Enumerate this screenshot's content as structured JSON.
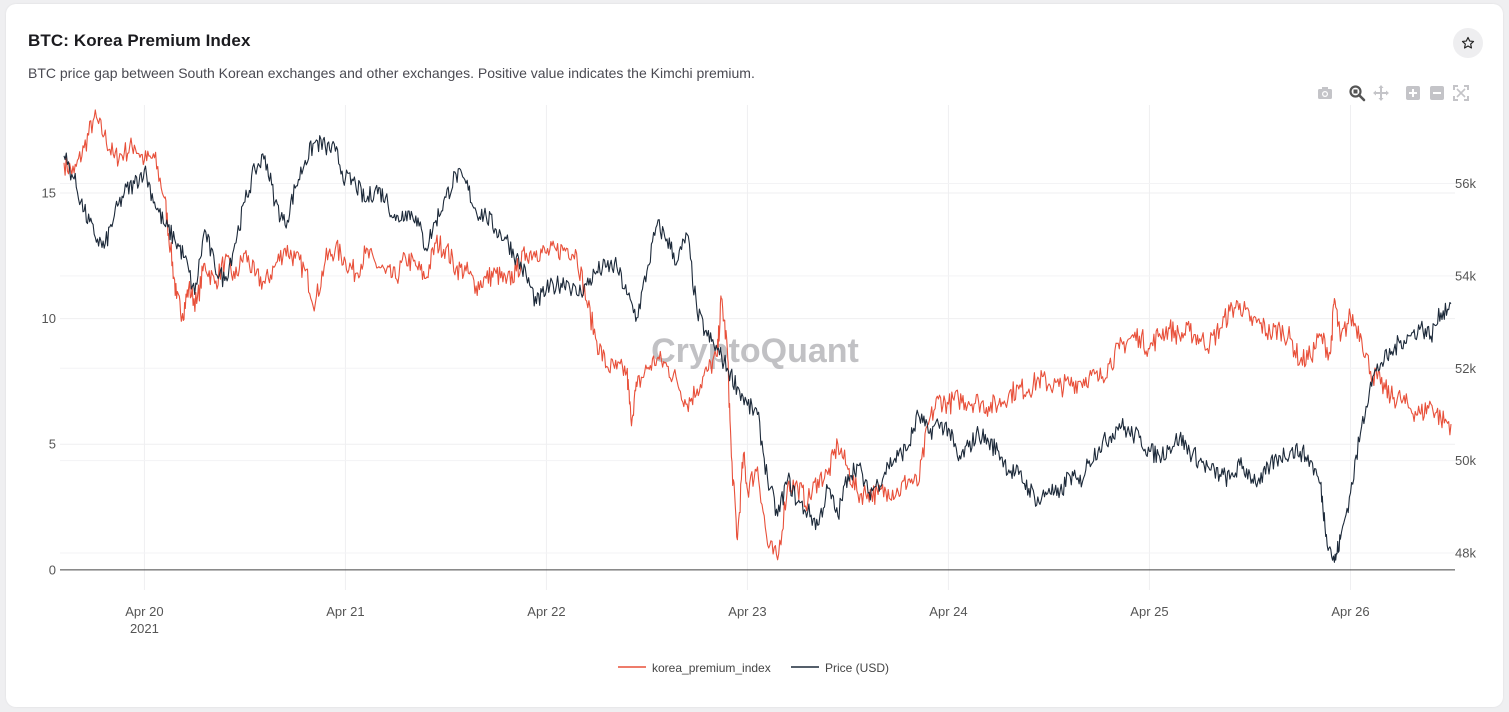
{
  "header": {
    "title": "BTC: Korea Premium Index",
    "subtitle": "BTC price gap between South Korean exchanges and other exchanges. Positive value indicates the Kimchi premium."
  },
  "icons": {
    "favorite": "star-icon",
    "modebar": [
      "camera-icon",
      "zoom-icon",
      "pan-icon",
      "zoom-in-icon",
      "zoom-out-icon",
      "autoscale-icon"
    ]
  },
  "watermark": "CryptoQuant",
  "chart_data": {
    "type": "line",
    "title": "BTC: Korea Premium Index",
    "x_tick_labels": [
      "Apr 20",
      "Apr 21",
      "Apr 22",
      "Apr 23",
      "Apr 24",
      "Apr 25",
      "Apr 26"
    ],
    "x_year_label": "2021",
    "x_range_days": [
      19.58,
      26.52
    ],
    "y_left": {
      "label": "",
      "ticks": [
        0,
        5,
        10,
        15
      ],
      "range": [
        -0.8,
        18.5
      ]
    },
    "y_right": {
      "label": "",
      "ticks": [
        48000,
        50000,
        52000,
        54000,
        56000
      ],
      "tick_labels": [
        "48k",
        "50k",
        "52k",
        "54k",
        "56k"
      ],
      "range": [
        47200,
        57700
      ]
    },
    "grid": true,
    "legend_position": "bottom-center",
    "series": [
      {
        "name": "korea_premium_index",
        "axis": "left",
        "color": "#e8503a",
        "points": [
          [
            19.6,
            16.2
          ],
          [
            19.65,
            15.8
          ],
          [
            19.7,
            16.8
          ],
          [
            19.75,
            18.0
          ],
          [
            19.8,
            17.3
          ],
          [
            19.85,
            16.4
          ],
          [
            19.9,
            16.6
          ],
          [
            19.95,
            16.9
          ],
          [
            20.0,
            16.3
          ],
          [
            20.05,
            16.4
          ],
          [
            20.1,
            14.8
          ],
          [
            20.13,
            12.8
          ],
          [
            20.16,
            10.8
          ],
          [
            20.19,
            10.2
          ],
          [
            20.22,
            11.2
          ],
          [
            20.26,
            10.6
          ],
          [
            20.3,
            12.2
          ],
          [
            20.35,
            11.4
          ],
          [
            20.4,
            12.3
          ],
          [
            20.45,
            11.6
          ],
          [
            20.5,
            12.6
          ],
          [
            20.55,
            11.7
          ],
          [
            20.6,
            11.4
          ],
          [
            20.65,
            12.1
          ],
          [
            20.7,
            12.8
          ],
          [
            20.75,
            12.4
          ],
          [
            20.8,
            11.9
          ],
          [
            20.85,
            10.6
          ],
          [
            20.9,
            12.3
          ],
          [
            20.95,
            12.8
          ],
          [
            21.0,
            12.3
          ],
          [
            21.05,
            11.8
          ],
          [
            21.1,
            12.6
          ],
          [
            21.15,
            12.2
          ],
          [
            21.2,
            11.8
          ],
          [
            21.25,
            11.6
          ],
          [
            21.3,
            12.4
          ],
          [
            21.35,
            12.1
          ],
          [
            21.4,
            11.6
          ],
          [
            21.45,
            13.0
          ],
          [
            21.5,
            12.8
          ],
          [
            21.55,
            12.0
          ],
          [
            21.6,
            11.9
          ],
          [
            21.65,
            11.3
          ],
          [
            21.7,
            11.6
          ],
          [
            21.75,
            11.8
          ],
          [
            21.8,
            11.4
          ],
          [
            21.85,
            11.9
          ],
          [
            21.9,
            12.6
          ],
          [
            21.95,
            12.7
          ],
          [
            22.0,
            12.6
          ],
          [
            22.05,
            12.7
          ],
          [
            22.1,
            12.8
          ],
          [
            22.15,
            12.6
          ],
          [
            22.2,
            10.7
          ],
          [
            22.25,
            9.1
          ],
          [
            22.3,
            8.1
          ],
          [
            22.35,
            8.0
          ],
          [
            22.4,
            7.9
          ],
          [
            22.42,
            6.0
          ],
          [
            22.45,
            7.3
          ],
          [
            22.5,
            8.0
          ],
          [
            22.55,
            8.4
          ],
          [
            22.6,
            8.1
          ],
          [
            22.65,
            7.5
          ],
          [
            22.7,
            6.6
          ],
          [
            22.75,
            7.2
          ],
          [
            22.8,
            7.9
          ],
          [
            22.85,
            8.5
          ],
          [
            22.87,
            10.8
          ],
          [
            22.9,
            8.8
          ],
          [
            22.92,
            4.5
          ],
          [
            22.95,
            1.2
          ],
          [
            22.98,
            4.6
          ],
          [
            23.0,
            3.2
          ],
          [
            23.05,
            4.1
          ],
          [
            23.1,
            1.0
          ],
          [
            23.15,
            0.4
          ],
          [
            23.2,
            3.4
          ],
          [
            23.25,
            3.3
          ],
          [
            23.3,
            2.7
          ],
          [
            23.35,
            3.6
          ],
          [
            23.4,
            3.8
          ],
          [
            23.45,
            5.0
          ],
          [
            23.5,
            4.0
          ],
          [
            23.55,
            3.0
          ],
          [
            23.6,
            3.1
          ],
          [
            23.65,
            3.0
          ],
          [
            23.7,
            3.2
          ],
          [
            23.75,
            3.1
          ],
          [
            23.8,
            3.6
          ],
          [
            23.85,
            3.4
          ],
          [
            23.9,
            5.8
          ],
          [
            23.95,
            6.8
          ],
          [
            24.0,
            6.6
          ],
          [
            24.05,
            6.8
          ],
          [
            24.1,
            6.7
          ],
          [
            24.15,
            6.7
          ],
          [
            24.2,
            6.5
          ],
          [
            24.25,
            6.6
          ],
          [
            24.3,
            7.0
          ],
          [
            24.35,
            7.2
          ],
          [
            24.4,
            7.2
          ],
          [
            24.45,
            7.6
          ],
          [
            24.5,
            7.4
          ],
          [
            24.55,
            7.3
          ],
          [
            24.6,
            7.4
          ],
          [
            24.65,
            7.5
          ],
          [
            24.7,
            7.7
          ],
          [
            24.75,
            7.6
          ],
          [
            24.8,
            8.2
          ],
          [
            24.85,
            8.8
          ],
          [
            24.9,
            9.2
          ],
          [
            24.95,
            9.3
          ],
          [
            25.0,
            8.8
          ],
          [
            25.05,
            9.4
          ],
          [
            25.1,
            9.6
          ],
          [
            25.15,
            9.3
          ],
          [
            25.2,
            9.5
          ],
          [
            25.25,
            9.2
          ],
          [
            25.3,
            9.0
          ],
          [
            25.35,
            9.6
          ],
          [
            25.4,
            10.3
          ],
          [
            25.45,
            10.6
          ],
          [
            25.5,
            9.9
          ],
          [
            25.55,
            9.8
          ],
          [
            25.6,
            9.4
          ],
          [
            25.65,
            9.6
          ],
          [
            25.7,
            9.2
          ],
          [
            25.75,
            8.3
          ],
          [
            25.8,
            8.5
          ],
          [
            25.85,
            9.3
          ],
          [
            25.9,
            8.6
          ],
          [
            25.92,
            10.8
          ],
          [
            25.95,
            9.1
          ],
          [
            26.0,
            10.1
          ],
          [
            26.05,
            9.4
          ],
          [
            26.1,
            7.9
          ],
          [
            26.15,
            7.4
          ],
          [
            26.2,
            6.9
          ],
          [
            26.25,
            6.8
          ],
          [
            26.3,
            6.4
          ],
          [
            26.35,
            6.2
          ],
          [
            26.4,
            6.6
          ],
          [
            26.45,
            6.0
          ],
          [
            26.5,
            5.8
          ]
        ]
      },
      {
        "name": "Price (USD)",
        "axis": "right",
        "color": "#1d2a3a",
        "points": [
          [
            19.6,
            56600
          ],
          [
            19.65,
            56100
          ],
          [
            19.7,
            55400
          ],
          [
            19.75,
            54900
          ],
          [
            19.8,
            54600
          ],
          [
            19.85,
            55300
          ],
          [
            19.9,
            55800
          ],
          [
            19.95,
            56000
          ],
          [
            20.0,
            56300
          ],
          [
            20.05,
            55600
          ],
          [
            20.1,
            55100
          ],
          [
            20.15,
            54800
          ],
          [
            20.2,
            54400
          ],
          [
            20.25,
            53600
          ],
          [
            20.3,
            55000
          ],
          [
            20.35,
            54200
          ],
          [
            20.4,
            53900
          ],
          [
            20.45,
            54700
          ],
          [
            20.5,
            55600
          ],
          [
            20.55,
            56300
          ],
          [
            20.6,
            56600
          ],
          [
            20.65,
            55600
          ],
          [
            20.7,
            55100
          ],
          [
            20.75,
            55900
          ],
          [
            20.8,
            56500
          ],
          [
            20.85,
            56900
          ],
          [
            20.9,
            56800
          ],
          [
            20.95,
            56700
          ],
          [
            21.0,
            56100
          ],
          [
            21.05,
            56000
          ],
          [
            21.1,
            55600
          ],
          [
            21.15,
            55900
          ],
          [
            21.2,
            55700
          ],
          [
            21.25,
            55200
          ],
          [
            21.3,
            55400
          ],
          [
            21.35,
            55300
          ],
          [
            21.4,
            54600
          ],
          [
            21.45,
            55200
          ],
          [
            21.5,
            55700
          ],
          [
            21.55,
            56200
          ],
          [
            21.6,
            56000
          ],
          [
            21.65,
            55400
          ],
          [
            21.7,
            55300
          ],
          [
            21.75,
            55000
          ],
          [
            21.8,
            54800
          ],
          [
            21.85,
            54400
          ],
          [
            21.9,
            54000
          ],
          [
            21.95,
            53400
          ],
          [
            22.0,
            53700
          ],
          [
            22.05,
            53800
          ],
          [
            22.1,
            53900
          ],
          [
            22.15,
            53600
          ],
          [
            22.2,
            53800
          ],
          [
            22.25,
            54100
          ],
          [
            22.3,
            54200
          ],
          [
            22.35,
            54200
          ],
          [
            22.4,
            53600
          ],
          [
            22.45,
            53100
          ],
          [
            22.5,
            54100
          ],
          [
            22.55,
            55100
          ],
          [
            22.6,
            54800
          ],
          [
            22.65,
            54300
          ],
          [
            22.7,
            54900
          ],
          [
            22.75,
            53200
          ],
          [
            22.8,
            52700
          ],
          [
            22.85,
            52400
          ],
          [
            22.9,
            52000
          ],
          [
            22.95,
            51600
          ],
          [
            23.0,
            51200
          ],
          [
            23.05,
            51000
          ],
          [
            23.1,
            49600
          ],
          [
            23.15,
            48800
          ],
          [
            23.2,
            49600
          ],
          [
            23.25,
            49100
          ],
          [
            23.3,
            48900
          ],
          [
            23.35,
            48600
          ],
          [
            23.4,
            49400
          ],
          [
            23.45,
            48800
          ],
          [
            23.5,
            49700
          ],
          [
            23.55,
            49900
          ],
          [
            23.6,
            49300
          ],
          [
            23.65,
            49500
          ],
          [
            23.7,
            49900
          ],
          [
            23.75,
            50100
          ],
          [
            23.8,
            50300
          ],
          [
            23.85,
            51000
          ],
          [
            23.9,
            50600
          ],
          [
            23.95,
            50800
          ],
          [
            24.0,
            50700
          ],
          [
            24.05,
            50000
          ],
          [
            24.1,
            50300
          ],
          [
            24.15,
            50600
          ],
          [
            24.2,
            50400
          ],
          [
            24.25,
            50200
          ],
          [
            24.3,
            49800
          ],
          [
            24.35,
            49700
          ],
          [
            24.4,
            49400
          ],
          [
            24.45,
            49100
          ],
          [
            24.5,
            49400
          ],
          [
            24.55,
            49200
          ],
          [
            24.6,
            49700
          ],
          [
            24.65,
            49500
          ],
          [
            24.7,
            50000
          ],
          [
            24.75,
            50300
          ],
          [
            24.8,
            50500
          ],
          [
            24.85,
            50800
          ],
          [
            24.9,
            50600
          ],
          [
            24.95,
            50500
          ],
          [
            25.0,
            50200
          ],
          [
            25.05,
            50100
          ],
          [
            25.1,
            50300
          ],
          [
            25.15,
            50500
          ],
          [
            25.2,
            50200
          ],
          [
            25.25,
            50000
          ],
          [
            25.3,
            49800
          ],
          [
            25.35,
            49700
          ],
          [
            25.4,
            49600
          ],
          [
            25.45,
            49900
          ],
          [
            25.5,
            49700
          ],
          [
            25.55,
            49500
          ],
          [
            25.6,
            49900
          ],
          [
            25.65,
            50100
          ],
          [
            25.7,
            50200
          ],
          [
            25.75,
            50200
          ],
          [
            25.8,
            50000
          ],
          [
            25.85,
            49500
          ],
          [
            25.88,
            48400
          ],
          [
            25.92,
            47800
          ],
          [
            25.95,
            48300
          ],
          [
            26.0,
            49300
          ],
          [
            26.05,
            50600
          ],
          [
            26.1,
            51700
          ],
          [
            26.15,
            52100
          ],
          [
            26.2,
            52300
          ],
          [
            26.25,
            52600
          ],
          [
            26.3,
            52700
          ],
          [
            26.35,
            52900
          ],
          [
            26.4,
            52700
          ],
          [
            26.45,
            53200
          ],
          [
            26.5,
            53400
          ]
        ]
      }
    ]
  }
}
